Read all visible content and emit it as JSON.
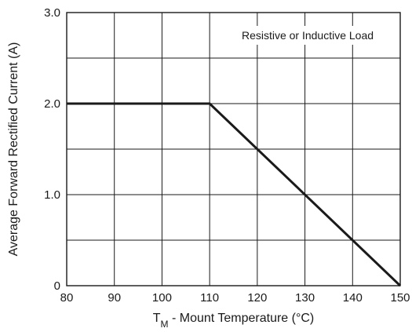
{
  "chart_data": {
    "type": "line",
    "xlabel": {
      "main": "T",
      "sub": "M",
      "rest": " - Mount Temperature (°C)"
    },
    "ylabel": "Average Forward Rectified Current (A)",
    "xlim": [
      80,
      150
    ],
    "ylim": [
      0,
      3.0
    ],
    "x_ticks": [
      80,
      90,
      100,
      110,
      120,
      130,
      140,
      150
    ],
    "x_tick_labels": [
      "80",
      "90",
      "100",
      "110",
      "120",
      "130",
      "140",
      "150"
    ],
    "y_ticks": [
      0,
      1.0,
      2.0,
      3.0
    ],
    "y_tick_labels": [
      "0",
      "1.0",
      "2.0",
      "3.0"
    ],
    "y_minor_grid": [
      0.5,
      1.5,
      2.5
    ],
    "grid": true,
    "annotation": "Resistive or Inductive Load",
    "series": [
      {
        "x": [
          80,
          110,
          150
        ],
        "y": [
          2.0,
          2.0,
          0
        ],
        "color": "#1a1a1a"
      }
    ]
  }
}
